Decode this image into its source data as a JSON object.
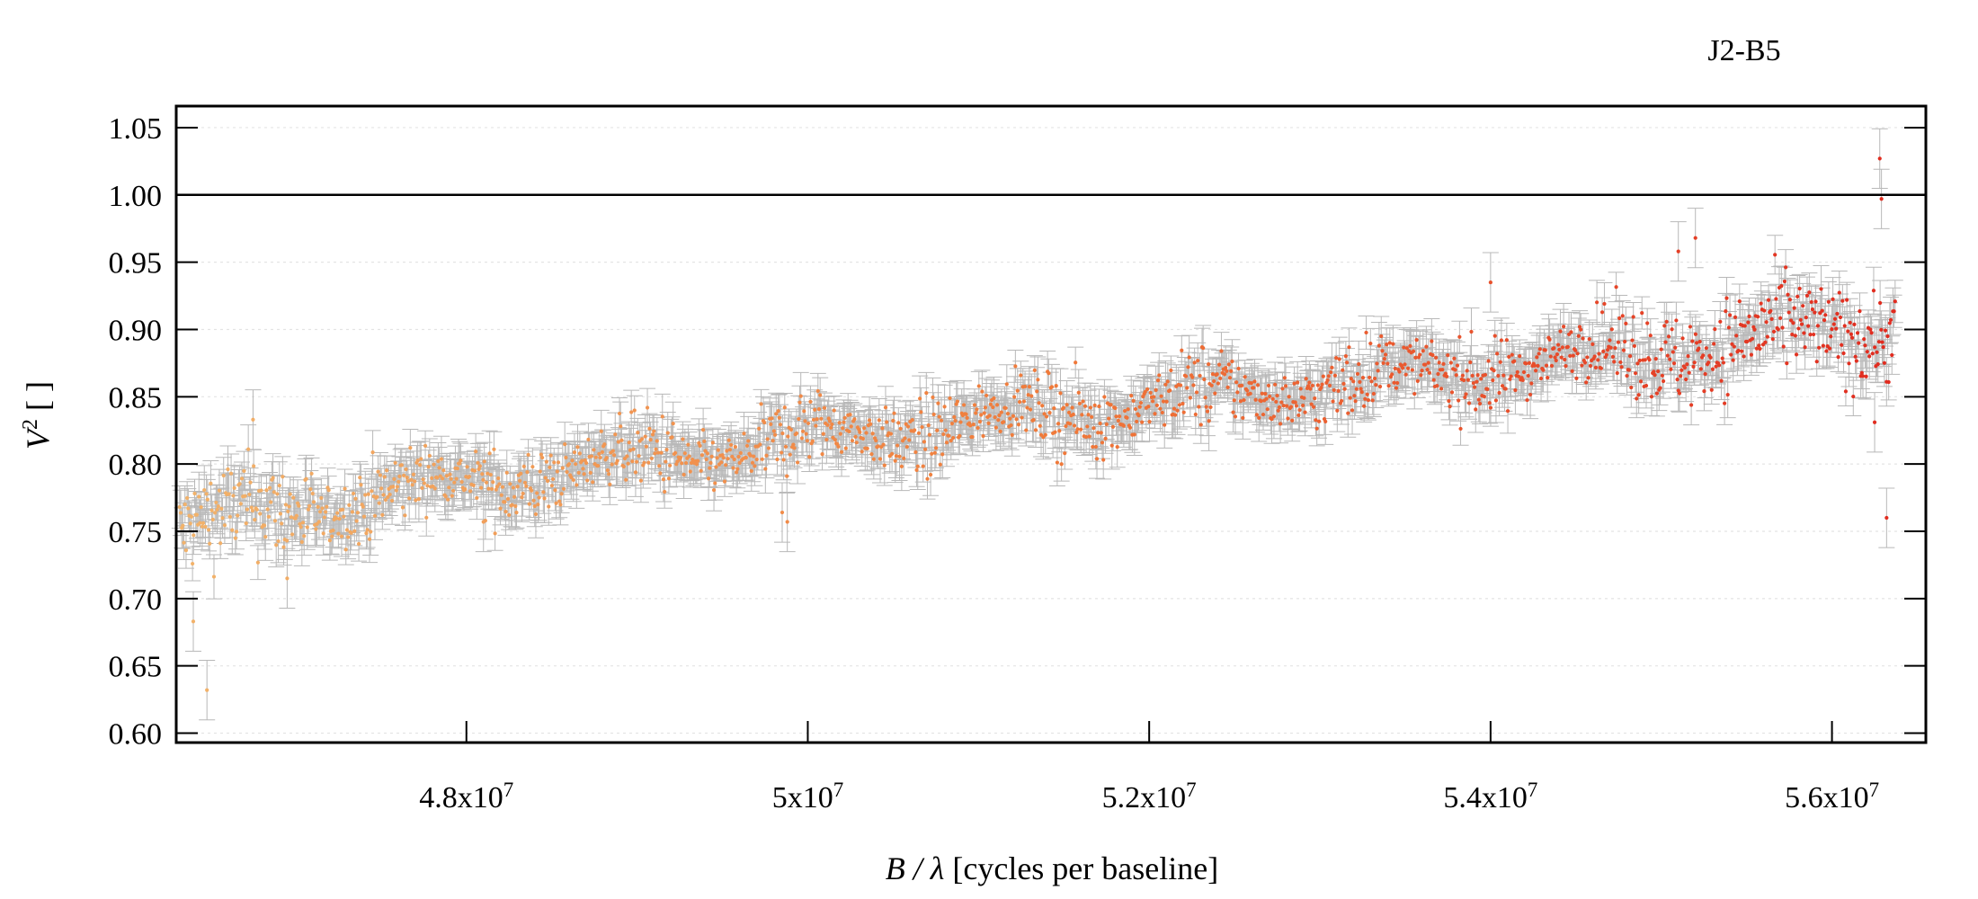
{
  "chart_data": {
    "type": "scatter",
    "title": "J2-B5",
    "xlabel": {
      "var": "B / λ",
      "unit": "[cycles per baseline]"
    },
    "ylabel": {
      "var": "V",
      "sup": "2",
      "unit": "[ ]"
    },
    "xlim": [
      46300000,
      56550000
    ],
    "ylim": [
      0.593,
      1.066
    ],
    "x_ticks": [
      {
        "value": 48000000,
        "mant": "4.8x10",
        "exp": "7"
      },
      {
        "value": 50000000,
        "mant": "5x10",
        "exp": "7"
      },
      {
        "value": 52000000,
        "mant": "5.2x10",
        "exp": "7"
      },
      {
        "value": 54000000,
        "mant": "5.4x10",
        "exp": "7"
      },
      {
        "value": 56000000,
        "mant": "5.6x10",
        "exp": "7"
      }
    ],
    "y_ticks": [
      "0.60",
      "0.65",
      "0.70",
      "0.75",
      "0.80",
      "0.85",
      "0.90",
      "0.95",
      "1.00",
      "1.05"
    ],
    "reference_line": 1.0,
    "grid": true,
    "colors": {
      "points_low_x": "#f2b36b",
      "points_mid_x": "#f07a3a",
      "points_high_x": "#e0281e",
      "error_bars": "#b8b8b8",
      "grid": "#e4e4e4",
      "frame": "#000000"
    },
    "series": [
      {
        "trend": [
          [
            46300000,
            0.752
          ],
          [
            48000000,
            0.786
          ],
          [
            50000000,
            0.818
          ],
          [
            52000000,
            0.845
          ],
          [
            54000000,
            0.872
          ],
          [
            56000000,
            0.898
          ],
          [
            56400000,
            0.905
          ]
        ],
        "error_bar_half_width": 0.013,
        "approx_point_count": 1600,
        "notable_points": [
          [
            46400000,
            0.683
          ],
          [
            46480000,
            0.632
          ],
          [
            46950000,
            0.715
          ],
          [
            46750000,
            0.833
          ],
          [
            48100000,
            0.757
          ],
          [
            49850000,
            0.764
          ],
          [
            49880000,
            0.757
          ],
          [
            52350000,
            0.832
          ],
          [
            54000000,
            0.935
          ],
          [
            55100000,
            0.958
          ],
          [
            55200000,
            0.968
          ],
          [
            56250000,
            0.831
          ],
          [
            56280000,
            1.027
          ],
          [
            56290000,
            0.997
          ],
          [
            56320000,
            0.76
          ]
        ]
      }
    ]
  }
}
